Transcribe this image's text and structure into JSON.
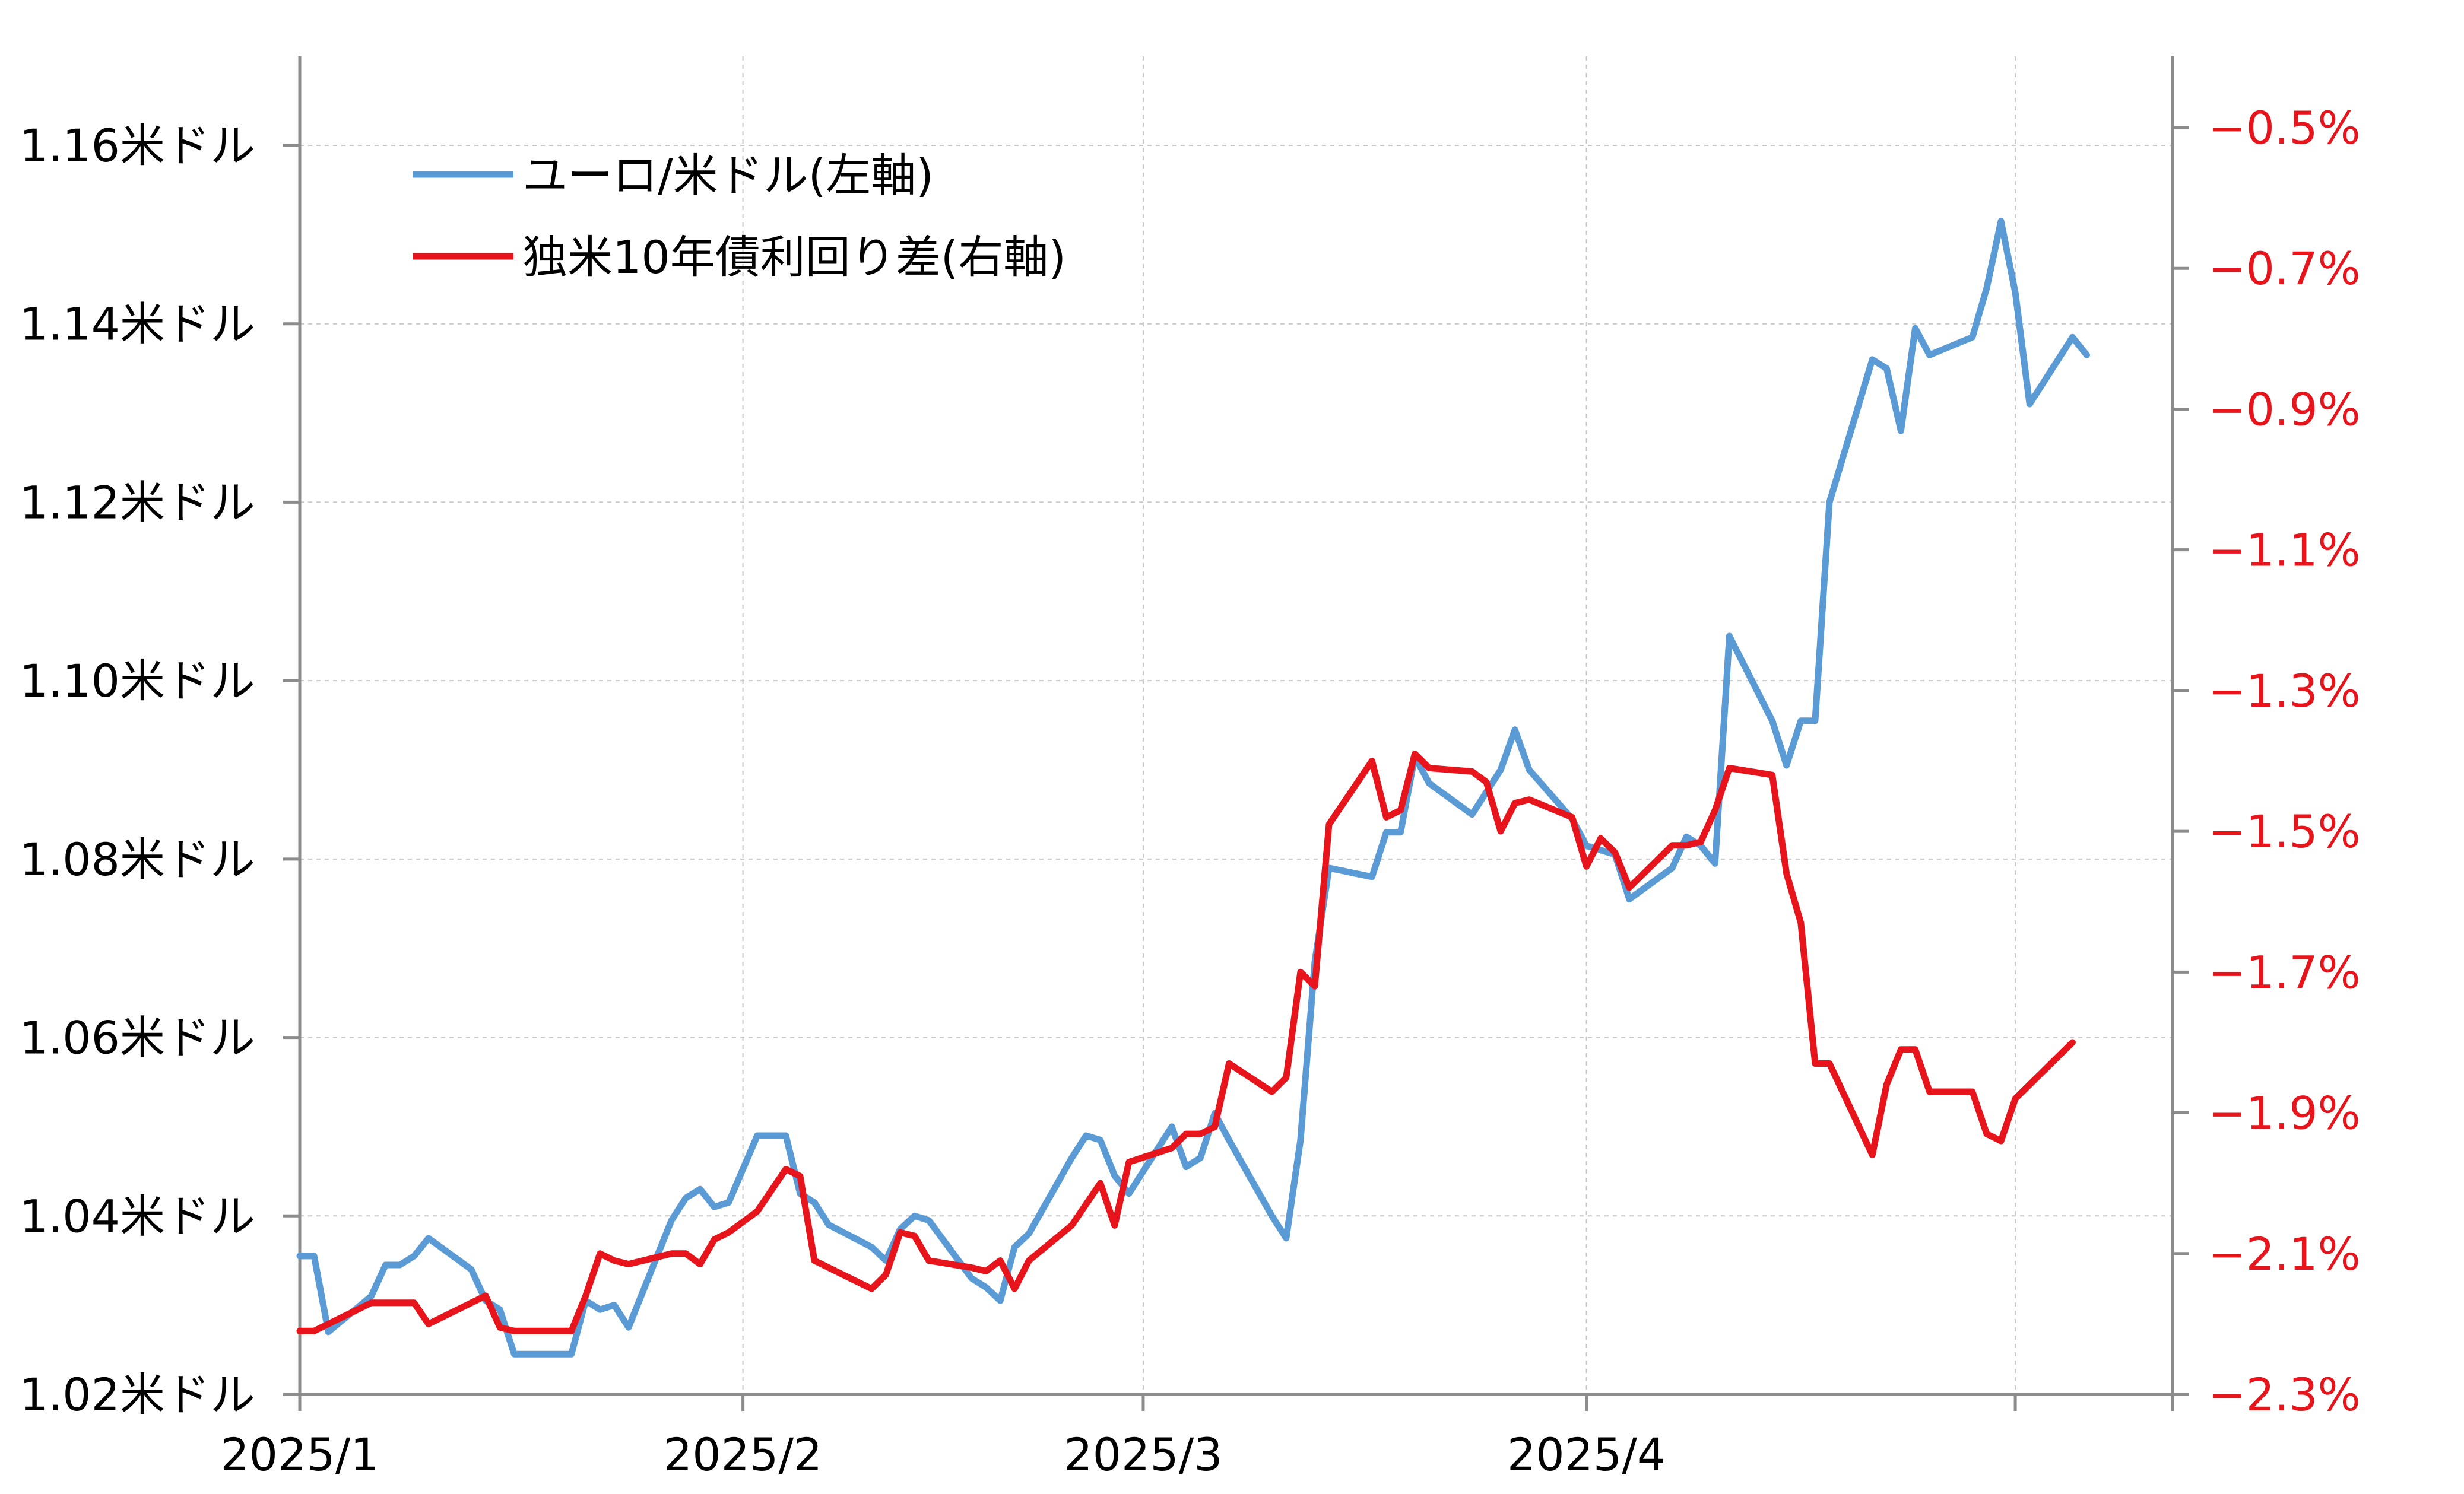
{
  "chart_data": {
    "type": "line",
    "title": "",
    "x_labels": [
      "2025/1",
      "2025/2",
      "2025/3",
      "2025/4"
    ],
    "y_left": {
      "min": 1.02,
      "max": 1.16,
      "ticks": [
        1.02,
        1.04,
        1.06,
        1.08,
        1.1,
        1.12,
        1.14,
        1.16
      ],
      "tick_labels": [
        "1.02米ドル",
        "1.04米ドル",
        "1.06米ドル",
        "1.08米ドル",
        "1.10米ドル",
        "1.12米ドル",
        "1.14米ドル",
        "1.16米ドル"
      ]
    },
    "y_right": {
      "min": -2.3,
      "max": -0.5,
      "ticks": [
        -2.3,
        -2.1,
        -1.9,
        -1.7,
        -1.5,
        -1.3,
        -1.1,
        -0.9,
        -0.7,
        -0.5
      ],
      "tick_labels": [
        "−2.3%",
        "−2.1%",
        "−1.9%",
        "−1.7%",
        "−1.5%",
        "−1.3%",
        "−1.1%",
        "−0.9%",
        "−0.7%",
        "−0.5%"
      ],
      "color": "#e8141c"
    },
    "grid": true,
    "legend_position": "top-left",
    "series": [
      {
        "name": "ユーロ/米ドル(左軸)",
        "axis": "left",
        "color": "#5b9bd5",
        "points": [
          [
            "2025-01-01",
            1.0355
          ],
          [
            "2025-01-02",
            1.0355
          ],
          [
            "2025-01-03",
            1.027
          ],
          [
            "2025-01-06",
            1.031
          ],
          [
            "2025-01-07",
            1.0345
          ],
          [
            "2025-01-08",
            1.0345
          ],
          [
            "2025-01-09",
            1.0355
          ],
          [
            "2025-01-10",
            1.0375
          ],
          [
            "2025-01-13",
            1.034
          ],
          [
            "2025-01-14",
            1.0305
          ],
          [
            "2025-01-15",
            1.0295
          ],
          [
            "2025-01-16",
            1.0245
          ],
          [
            "2025-01-17",
            1.0245
          ],
          [
            "2025-01-20",
            1.0245
          ],
          [
            "2025-01-21",
            1.0305
          ],
          [
            "2025-01-22",
            1.0295
          ],
          [
            "2025-01-23",
            1.03
          ],
          [
            "2025-01-24",
            1.0275
          ],
          [
            "2025-01-27",
            1.0395
          ],
          [
            "2025-01-28",
            1.042
          ],
          [
            "2025-01-29",
            1.043
          ],
          [
            "2025-01-30",
            1.041
          ],
          [
            "2025-01-31",
            1.0415
          ],
          [
            "2025-02-02",
            1.049
          ],
          [
            "2025-02-04",
            1.049
          ],
          [
            "2025-02-05",
            1.0425
          ],
          [
            "2025-02-06",
            1.0415
          ],
          [
            "2025-02-07",
            1.039
          ],
          [
            "2025-02-10",
            1.0365
          ],
          [
            "2025-02-11",
            1.035
          ],
          [
            "2025-02-12",
            1.0385
          ],
          [
            "2025-02-13",
            1.04
          ],
          [
            "2025-02-14",
            1.0395
          ],
          [
            "2025-02-17",
            1.033
          ],
          [
            "2025-02-18",
            1.032
          ],
          [
            "2025-02-19",
            1.0305
          ],
          [
            "2025-02-20",
            1.0365
          ],
          [
            "2025-02-21",
            1.038
          ],
          [
            "2025-02-24",
            1.0465
          ],
          [
            "2025-02-25",
            1.049
          ],
          [
            "2025-02-26",
            1.0485
          ],
          [
            "2025-02-27",
            1.0445
          ],
          [
            "2025-02-28",
            1.0425
          ],
          [
            "2025-03-03",
            1.05
          ],
          [
            "2025-03-04",
            1.0455
          ],
          [
            "2025-03-05",
            1.0465
          ],
          [
            "2025-03-06",
            1.0515
          ],
          [
            "2025-03-07",
            1.0485
          ],
          [
            "2025-03-10",
            1.04
          ],
          [
            "2025-03-11",
            1.0375
          ],
          [
            "2025-03-12",
            1.0485
          ],
          [
            "2025-03-13",
            1.0685
          ],
          [
            "2025-03-14",
            1.079
          ],
          [
            "2025-03-17",
            1.078
          ],
          [
            "2025-03-18",
            1.083
          ],
          [
            "2025-03-19",
            1.083
          ],
          [
            "2025-03-20",
            1.0915
          ],
          [
            "2025-03-21",
            1.0885
          ],
          [
            "2025-03-24",
            1.085
          ],
          [
            "2025-03-25",
            1.0875
          ],
          [
            "2025-03-26",
            1.09
          ],
          [
            "2025-03-27",
            1.0945
          ],
          [
            "2025-03-28",
            1.09
          ],
          [
            "2025-03-31",
            1.0845
          ],
          [
            "2025-04-01",
            1.0815
          ],
          [
            "2025-04-02",
            1.081
          ],
          [
            "2025-04-03",
            1.0805
          ],
          [
            "2025-04-04",
            1.0755
          ],
          [
            "2025-04-07",
            1.079
          ],
          [
            "2025-04-08",
            1.0825
          ],
          [
            "2025-04-09",
            1.0815
          ],
          [
            "2025-04-10",
            1.0795
          ],
          [
            "2025-04-11",
            1.105
          ],
          [
            "2025-04-14",
            1.0955
          ],
          [
            "2025-04-15",
            1.0905
          ],
          [
            "2025-04-16",
            1.0955
          ],
          [
            "2025-04-17",
            1.0955
          ],
          [
            "2025-04-18",
            1.12
          ],
          [
            "2025-04-21",
            1.136
          ],
          [
            "2025-04-22",
            1.135
          ],
          [
            "2025-04-23",
            1.128
          ],
          [
            "2025-04-24",
            1.1395
          ],
          [
            "2025-04-25",
            1.1365
          ],
          [
            "2025-04-28",
            1.1385
          ],
          [
            "2025-04-29",
            1.144
          ],
          [
            "2025-04-30",
            1.1515
          ],
          [
            "2025-05-01",
            1.1435
          ],
          [
            "2025-05-02",
            1.131
          ],
          [
            "2025-05-05",
            1.1385
          ],
          [
            "2025-05-06",
            1.1365
          ]
        ]
      },
      {
        "name": "独米10年債利回り差(右軸)",
        "axis": "right",
        "color": "#e8141c",
        "points": [
          [
            "2025-01-01",
            -2.21
          ],
          [
            "2025-01-02",
            -2.21
          ],
          [
            "2025-01-03",
            -2.2
          ],
          [
            "2025-01-06",
            -2.17
          ],
          [
            "2025-01-07",
            -2.17
          ],
          [
            "2025-01-08",
            -2.17
          ],
          [
            "2025-01-09",
            -2.17
          ],
          [
            "2025-01-10",
            -2.2
          ],
          [
            "2025-01-13",
            -2.17
          ],
          [
            "2025-01-14",
            -2.16
          ],
          [
            "2025-01-15",
            -2.205
          ],
          [
            "2025-01-16",
            -2.21
          ],
          [
            "2025-01-17",
            -2.21
          ],
          [
            "2025-01-20",
            -2.21
          ],
          [
            "2025-01-21",
            -2.16
          ],
          [
            "2025-01-22",
            -2.1
          ],
          [
            "2025-01-23",
            -2.11
          ],
          [
            "2025-01-24",
            -2.115
          ],
          [
            "2025-01-27",
            -2.1
          ],
          [
            "2025-01-28",
            -2.1
          ],
          [
            "2025-01-29",
            -2.115
          ],
          [
            "2025-01-30",
            -2.08
          ],
          [
            "2025-01-31",
            -2.07
          ],
          [
            "2025-02-02",
            -2.04
          ],
          [
            "2025-02-04",
            -1.98
          ],
          [
            "2025-02-05",
            -1.99
          ],
          [
            "2025-02-06",
            -2.11
          ],
          [
            "2025-02-07",
            -2.12
          ],
          [
            "2025-02-10",
            -2.15
          ],
          [
            "2025-02-11",
            -2.13
          ],
          [
            "2025-02-12",
            -2.07
          ],
          [
            "2025-02-13",
            -2.075
          ],
          [
            "2025-02-14",
            -2.11
          ],
          [
            "2025-02-17",
            -2.12
          ],
          [
            "2025-02-18",
            -2.125
          ],
          [
            "2025-02-19",
            -2.11
          ],
          [
            "2025-02-20",
            -2.15
          ],
          [
            "2025-02-21",
            -2.11
          ],
          [
            "2025-02-24",
            -2.06
          ],
          [
            "2025-02-25",
            -2.03
          ],
          [
            "2025-02-26",
            -2.0
          ],
          [
            "2025-02-27",
            -2.06
          ],
          [
            "2025-02-28",
            -1.97
          ],
          [
            "2025-03-03",
            -1.95
          ],
          [
            "2025-03-04",
            -1.93
          ],
          [
            "2025-03-05",
            -1.93
          ],
          [
            "2025-03-06",
            -1.92
          ],
          [
            "2025-03-07",
            -1.83
          ],
          [
            "2025-03-10",
            -1.87
          ],
          [
            "2025-03-11",
            -1.85
          ],
          [
            "2025-03-12",
            -1.7
          ],
          [
            "2025-03-13",
            -1.72
          ],
          [
            "2025-03-14",
            -1.49
          ],
          [
            "2025-03-17",
            -1.4
          ],
          [
            "2025-03-18",
            -1.48
          ],
          [
            "2025-03-19",
            -1.47
          ],
          [
            "2025-03-20",
            -1.39
          ],
          [
            "2025-03-21",
            -1.41
          ],
          [
            "2025-03-24",
            -1.415
          ],
          [
            "2025-03-25",
            -1.43
          ],
          [
            "2025-03-26",
            -1.5
          ],
          [
            "2025-03-27",
            -1.46
          ],
          [
            "2025-03-28",
            -1.455
          ],
          [
            "2025-03-31",
            -1.48
          ],
          [
            "2025-04-01",
            -1.55
          ],
          [
            "2025-04-02",
            -1.51
          ],
          [
            "2025-04-03",
            -1.53
          ],
          [
            "2025-04-04",
            -1.58
          ],
          [
            "2025-04-07",
            -1.52
          ],
          [
            "2025-04-08",
            -1.52
          ],
          [
            "2025-04-09",
            -1.515
          ],
          [
            "2025-04-10",
            -1.47
          ],
          [
            "2025-04-11",
            -1.41
          ],
          [
            "2025-04-14",
            -1.42
          ],
          [
            "2025-04-15",
            -1.56
          ],
          [
            "2025-04-16",
            -1.63
          ],
          [
            "2025-04-17",
            -1.83
          ],
          [
            "2025-04-18",
            -1.83
          ],
          [
            "2025-04-21",
            -1.96
          ],
          [
            "2025-04-22",
            -1.86
          ],
          [
            "2025-04-23",
            -1.81
          ],
          [
            "2025-04-24",
            -1.81
          ],
          [
            "2025-04-25",
            -1.87
          ],
          [
            "2025-04-28",
            -1.87
          ],
          [
            "2025-04-29",
            -1.93
          ],
          [
            "2025-04-30",
            -1.94
          ],
          [
            "2025-05-01",
            -1.88
          ],
          [
            "2025-05-02",
            -1.86
          ],
          [
            "2025-05-05",
            -1.8
          ]
        ]
      }
    ]
  }
}
